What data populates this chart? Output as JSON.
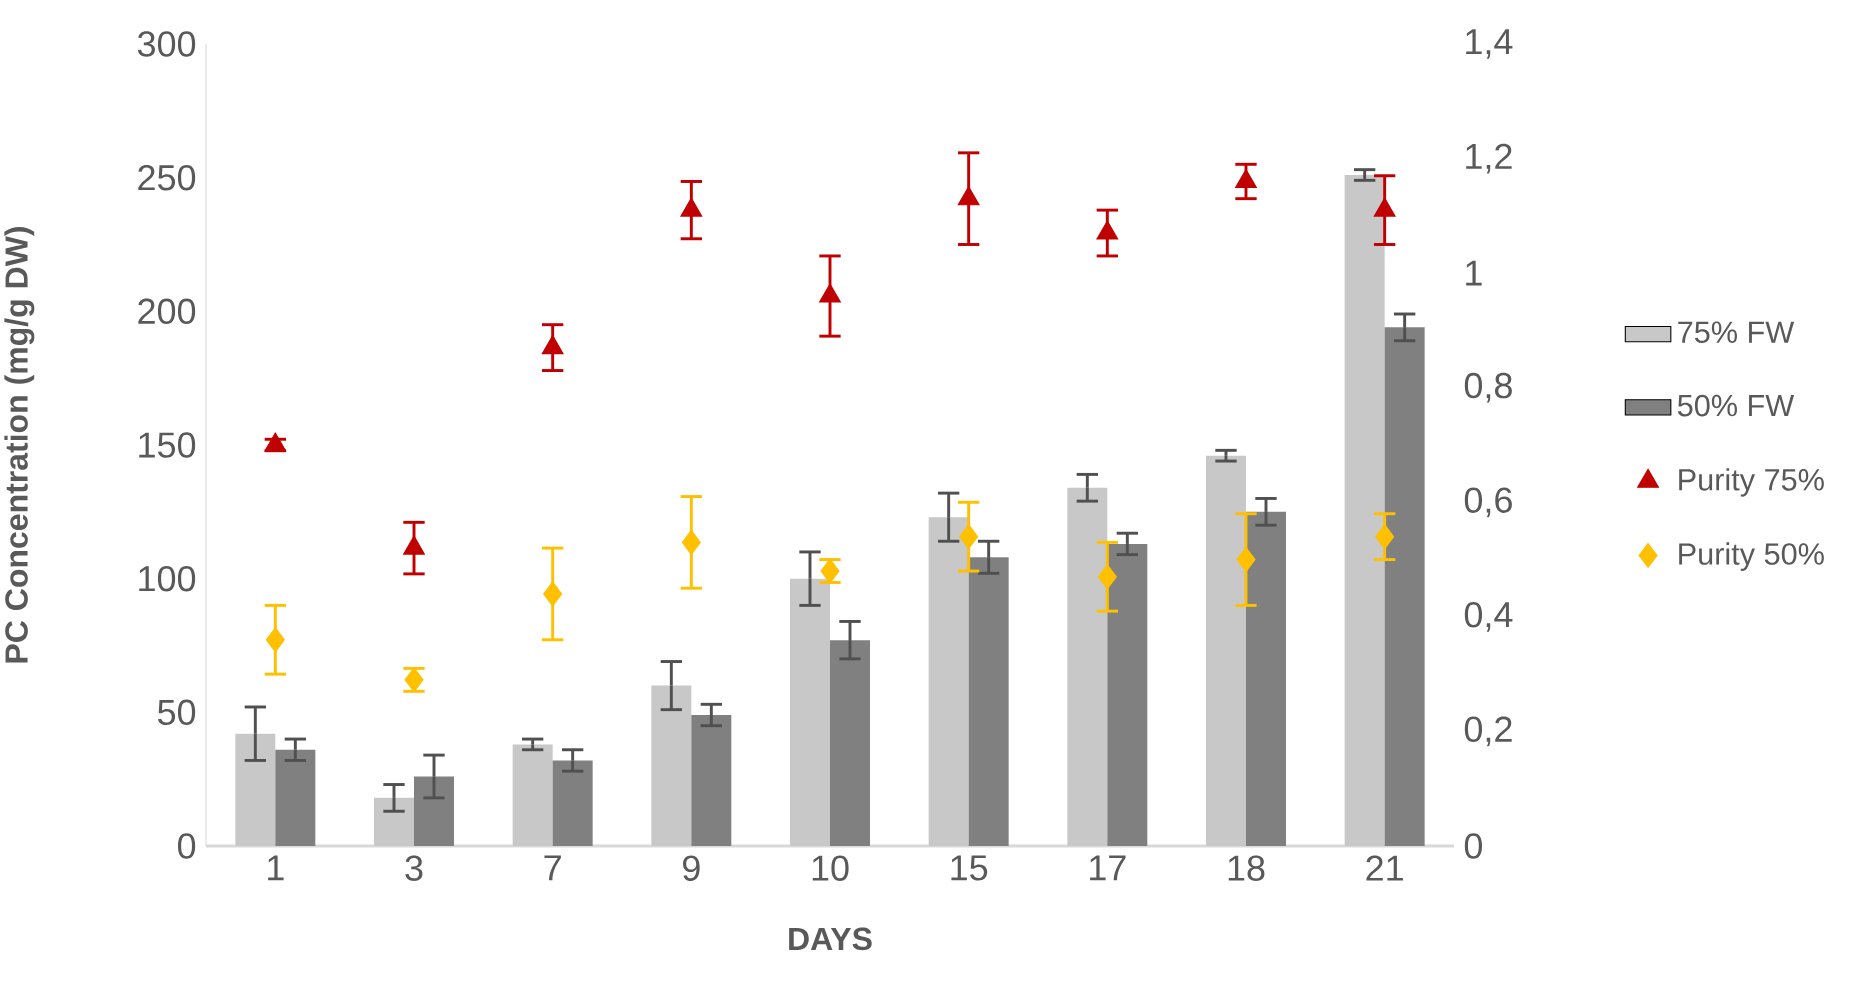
{
  "chart_data": {
    "type": "bar",
    "xlabel": "DAYS",
    "ylabel": "PC Concentration (mg/g DW)",
    "categories": [
      "1",
      "3",
      "7",
      "9",
      "10",
      "15",
      "17",
      "18",
      "21"
    ],
    "series": [
      {
        "name": "75% FW",
        "color": "#c8c8c8",
        "values": [
          42,
          18,
          38,
          60,
          100,
          123,
          134,
          146,
          251
        ],
        "errors": [
          10,
          5,
          2,
          9,
          10,
          9,
          5,
          2,
          2
        ]
      },
      {
        "name": "50% FW",
        "color": "#808080",
        "values": [
          36,
          26,
          32,
          49,
          77,
          108,
          113,
          125,
          194
        ],
        "errors": [
          4,
          8,
          4,
          4,
          7,
          6,
          4,
          5,
          5
        ]
      },
      {
        "name": "Purity 75%",
        "type": "scatter",
        "axis": "y2",
        "marker": "triangle",
        "color": "#c00000",
        "values": [
          0.7,
          0.52,
          0.87,
          1.11,
          0.96,
          1.13,
          1.07,
          1.16,
          1.11
        ],
        "errors": [
          0.01,
          0.045,
          0.04,
          0.05,
          0.07,
          0.08,
          0.04,
          0.03,
          0.06
        ]
      },
      {
        "name": "Purity 50%",
        "type": "scatter",
        "axis": "y2",
        "marker": "diamond",
        "color": "#ffc000",
        "values": [
          0.36,
          0.29,
          0.44,
          0.53,
          0.48,
          0.54,
          0.47,
          0.5,
          0.54
        ],
        "errors": [
          0.06,
          0.02,
          0.08,
          0.08,
          0.02,
          0.06,
          0.06,
          0.08,
          0.04
        ]
      }
    ],
    "ylim": [
      0,
      300
    ],
    "yticks": [
      0,
      50,
      100,
      150,
      200,
      250,
      300
    ],
    "y2lim": [
      0,
      1.4
    ],
    "y2ticks": [
      0,
      {
        "value": 0.2,
        "label": "0,2"
      },
      {
        "value": 0.4,
        "label": "0,4"
      },
      {
        "value": 0.6,
        "label": "0,6"
      },
      {
        "value": 0.8,
        "label": "0,8"
      },
      1,
      {
        "value": 1.2,
        "label": "1,2"
      },
      {
        "value": 1.4,
        "label": "1,4"
      }
    ],
    "grid": false,
    "legend": "right"
  }
}
